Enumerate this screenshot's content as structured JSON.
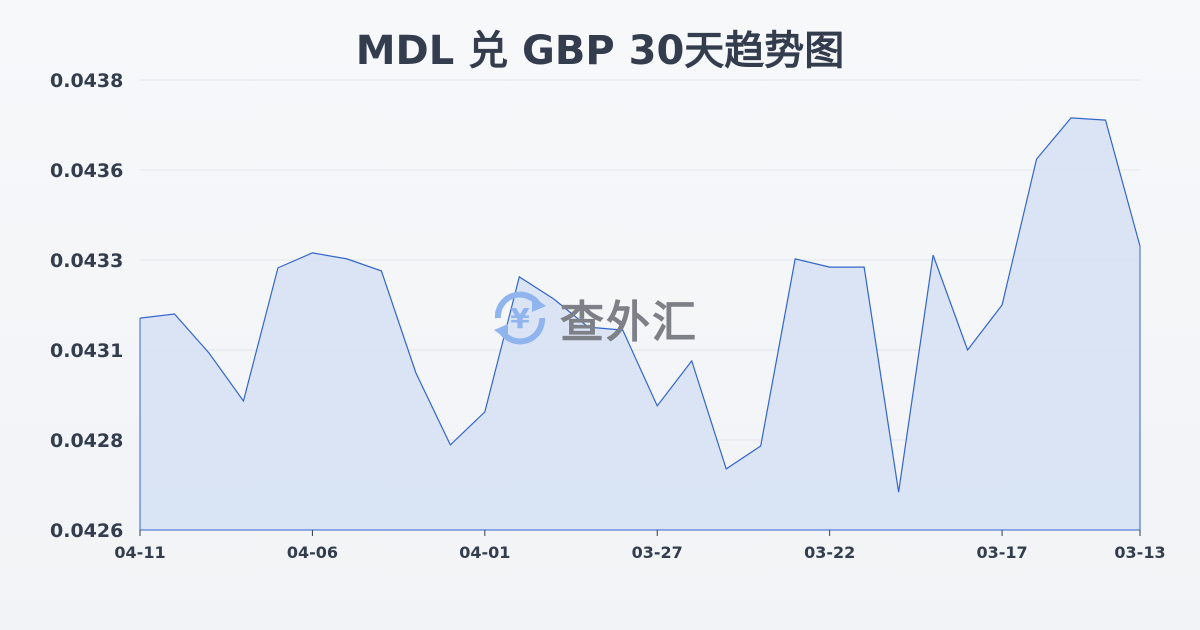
{
  "chart_data": {
    "type": "area",
    "title": "MDL 兑 GBP 30天趋势图",
    "xlabel": "",
    "ylabel": "",
    "ylim": [
      0.0426,
      0.0438
    ],
    "yticks": [
      "0.0438",
      "0.0436",
      "0.0433",
      "0.0431",
      "0.0428",
      "0.0426"
    ],
    "ytick_values": [
      0.0438,
      0.04356,
      0.04332,
      0.04308,
      0.04284,
      0.0426
    ],
    "xtick_labels": [
      "04-11",
      "04-06",
      "04-01",
      "03-27",
      "03-22",
      "03-17",
      "03-13"
    ],
    "x": [
      "04-11",
      "04-10",
      "04-09",
      "04-08",
      "04-07",
      "04-06",
      "04-05",
      "04-04",
      "04-03",
      "04-02",
      "04-01",
      "03-31",
      "03-30",
      "03-29",
      "03-28",
      "03-27",
      "03-26",
      "03-25",
      "03-24",
      "03-23",
      "03-22",
      "03-21",
      "03-20",
      "03-19",
      "03-18",
      "03-17",
      "03-16",
      "03-15",
      "03-14",
      "03-13"
    ],
    "values": [
      0.043165,
      0.043176,
      0.043072,
      0.042944,
      0.043299,
      0.043339,
      0.043323,
      0.043291,
      0.043019,
      0.042827,
      0.042915,
      0.043275,
      0.043216,
      0.043141,
      0.043133,
      0.042931,
      0.043051,
      0.042763,
      0.042824,
      0.043323,
      0.043301,
      0.043301,
      0.042701,
      0.043333,
      0.04308,
      0.0432,
      0.043589,
      0.043699,
      0.043693,
      0.043357
    ],
    "grid": true,
    "line_color": "#3366cc",
    "fill_color": "#d5e0f5"
  },
  "watermark": {
    "text": "查外汇",
    "icon": "yen-exchange-icon",
    "color": "#7d8087"
  }
}
